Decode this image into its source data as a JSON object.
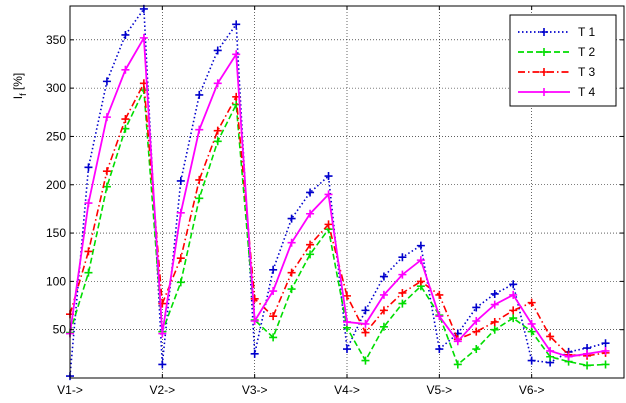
{
  "chart_data": {
    "type": "line",
    "ylabel": "I_f [%]",
    "ylabel_main": "I",
    "ylabel_sub": "f",
    "ylabel_unit": " [%]",
    "xlabel": "",
    "title": "",
    "xlim": [
      0,
      30
    ],
    "ylim": [
      0,
      385
    ],
    "grid": true,
    "legend_position": "top-right",
    "xticks": [
      {
        "x": 0,
        "label": "V1->"
      },
      {
        "x": 5,
        "label": "V2->"
      },
      {
        "x": 10,
        "label": "V3->"
      },
      {
        "x": 15,
        "label": "V4->"
      },
      {
        "x": 20,
        "label": "V5->"
      },
      {
        "x": 25,
        "label": "V6->"
      }
    ],
    "yticks": [
      50,
      100,
      150,
      200,
      250,
      300,
      350
    ],
    "x": [
      0,
      1,
      2,
      3,
      4,
      5,
      6,
      7,
      8,
      9,
      10,
      11,
      12,
      13,
      14,
      15,
      16,
      17,
      18,
      19,
      20,
      21,
      22,
      23,
      24,
      25,
      26,
      27,
      28,
      29,
      30
    ],
    "series": [
      {
        "name": "T 1",
        "color": "#0000cc",
        "style": "dotted",
        "values": [
          2,
          218,
          307,
          355,
          382,
          14,
          204,
          293,
          339,
          366,
          25,
          112,
          165,
          192,
          209,
          30,
          70,
          105,
          125,
          137,
          30,
          46,
          73,
          87,
          97,
          18,
          16,
          27,
          31,
          36,
          null
        ]
      },
      {
        "name": "T 2",
        "color": "#00dd00",
        "style": "dashed",
        "values": [
          47,
          109,
          198,
          258,
          298,
          48,
          99,
          186,
          245,
          283,
          60,
          42,
          92,
          128,
          154,
          52,
          18,
          53,
          77,
          95,
          65,
          14,
          30,
          50,
          62,
          48,
          22,
          17,
          13,
          14,
          null
        ]
      },
      {
        "name": "T 3",
        "color": "#ff0000",
        "style": "dashdot",
        "values": [
          66,
          131,
          214,
          268,
          305,
          77,
          124,
          205,
          256,
          291,
          82,
          64,
          109,
          138,
          159,
          85,
          47,
          70,
          88,
          100,
          86,
          40,
          48,
          58,
          70,
          78,
          43,
          24,
          23,
          26,
          null
        ]
      },
      {
        "name": "T 4",
        "color": "#ff00ff",
        "style": "solid",
        "values": [
          46,
          181,
          270,
          319,
          352,
          46,
          171,
          257,
          305,
          335,
          59,
          90,
          140,
          170,
          190,
          58,
          56,
          86,
          107,
          122,
          64,
          38,
          59,
          76,
          86,
          56,
          28,
          22,
          25,
          28,
          null
        ]
      }
    ]
  }
}
